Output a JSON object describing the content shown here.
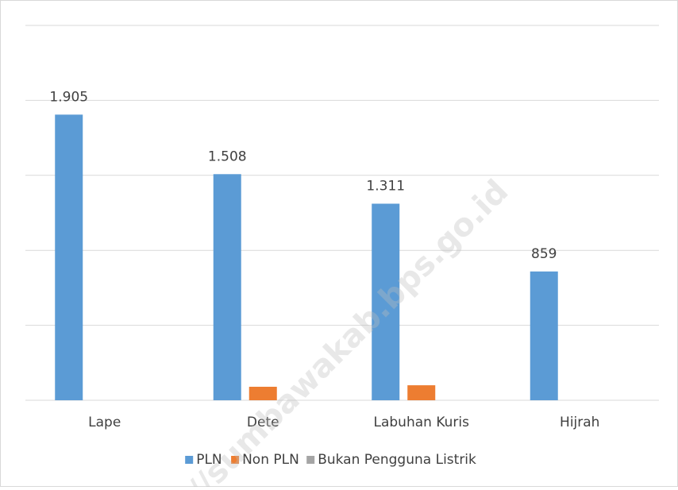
{
  "chart_data": {
    "type": "bar",
    "categories": [
      "Lape",
      "Dete",
      "Labuhan Kuris",
      "Hijrah"
    ],
    "series": [
      {
        "name": "PLN",
        "color": "#5b9bd5",
        "values": [
          1905,
          1508,
          1311,
          859
        ],
        "value_labels": [
          "1.905",
          "1.508",
          "1.311",
          "859"
        ]
      },
      {
        "name": "Non PLN",
        "color": "#ed7d31",
        "values": [
          0,
          90,
          100,
          0
        ]
      },
      {
        "name": "Bukan Pengguna Listrik",
        "color": "#a5a5a5",
        "values": [
          0,
          0,
          0,
          0
        ]
      }
    ],
    "ylim": [
      0,
      2500
    ],
    "yticks": [
      0,
      500,
      1000,
      1500,
      2000,
      2500
    ],
    "grid": true,
    "legend": "bottom",
    "watermark": "//sumbawakab.bps.go.id"
  }
}
